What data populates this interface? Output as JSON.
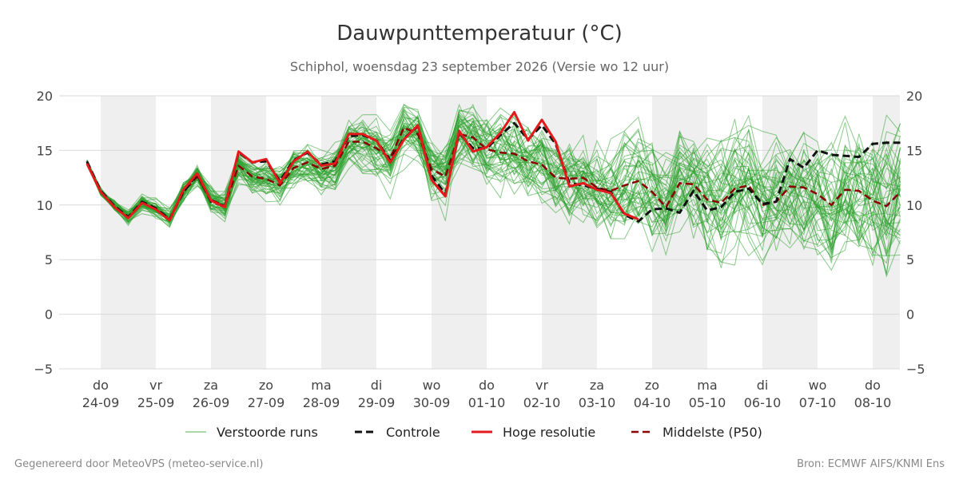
{
  "chart_data": {
    "type": "line",
    "title": "Dauwpunttemperatuur (°C)",
    "subtitle": "Schiphol, woensdag 23 september 2026 (Versie wo 12 uur)",
    "ylim": [
      -5,
      20
    ],
    "yticks": [
      "20",
      "15",
      "10",
      "5",
      "0",
      "−5"
    ],
    "ytick_values": [
      20,
      15,
      10,
      5,
      0,
      -5
    ],
    "xlim": [
      -0.25,
      14.5
    ],
    "grid": true,
    "legend": "bottom",
    "x_days": [
      {
        "day": "do",
        "date": "24-09",
        "x": 0
      },
      {
        "day": "vr",
        "date": "25-09",
        "x": 1
      },
      {
        "day": "za",
        "date": "26-09",
        "x": 2
      },
      {
        "day": "zo",
        "date": "27-09",
        "x": 3
      },
      {
        "day": "ma",
        "date": "28-09",
        "x": 4
      },
      {
        "day": "di",
        "date": "29-09",
        "x": 5
      },
      {
        "day": "wo",
        "date": "30-09",
        "x": 6
      },
      {
        "day": "do",
        "date": "01-10",
        "x": 7
      },
      {
        "day": "vr",
        "date": "02-10",
        "x": 8
      },
      {
        "day": "za",
        "date": "03-10",
        "x": 9
      },
      {
        "day": "zo",
        "date": "04-10",
        "x": 10
      },
      {
        "day": "ma",
        "date": "05-10",
        "x": 11
      },
      {
        "day": "di",
        "date": "06-10",
        "x": 12
      },
      {
        "day": "wo",
        "date": "07-10",
        "x": 13
      },
      {
        "day": "do",
        "date": "08-10",
        "x": 14
      }
    ],
    "shaded_days": [
      0,
      2,
      4,
      6,
      8,
      10,
      12,
      14
    ],
    "series": [
      {
        "name": "Hoge resolutie",
        "color": "#e31a1c",
        "x": [
          -0.25,
          0,
          0.25,
          0.5,
          0.75,
          1,
          1.25,
          1.5,
          1.75,
          2,
          2.25,
          2.5,
          2.75,
          3,
          3.25,
          3.5,
          3.75,
          4,
          4.25,
          4.5,
          4.75,
          5,
          5.25,
          5.5,
          5.75,
          6,
          6.25,
          6.5,
          6.75,
          7,
          7.25,
          7.5,
          7.75,
          8,
          8.25,
          8.5,
          8.75,
          9,
          9.25,
          9.5,
          9.75
        ],
        "y": [
          13.8,
          11.2,
          9.8,
          8.8,
          10.2,
          9.6,
          8.6,
          11.4,
          12.9,
          10.4,
          9.8,
          14.9,
          13.9,
          14.2,
          12.0,
          14.0,
          14.9,
          13.6,
          13.8,
          16.5,
          16.5,
          15.9,
          13.9,
          16.0,
          17.3,
          12.3,
          10.8,
          16.8,
          14.9,
          15.3,
          16.6,
          18.5,
          15.9,
          17.8,
          15.8,
          11.7,
          12.0,
          11.4,
          11.1,
          9.2,
          8.7
        ]
      },
      {
        "name": "Controle",
        "color": "#111111",
        "x": [
          -0.25,
          0,
          0.25,
          0.5,
          0.75,
          1,
          1.25,
          1.5,
          1.75,
          2,
          2.25,
          2.5,
          2.75,
          3,
          3.25,
          3.5,
          3.75,
          4,
          4.25,
          4.5,
          4.75,
          5,
          5.25,
          5.5,
          5.75,
          6,
          6.25,
          6.5,
          6.75,
          7,
          7.25,
          7.5,
          7.75,
          8,
          8.25,
          8.5,
          8.75,
          9,
          9.25,
          9.5,
          9.75,
          10,
          10.25,
          10.5,
          10.75,
          11,
          11.25,
          11.5,
          11.75,
          12,
          12.25,
          12.5,
          12.75,
          13,
          13.25,
          13.5,
          13.75,
          14,
          14.25,
          14.5
        ],
        "y": [
          14.0,
          11.3,
          9.9,
          8.9,
          10.3,
          9.7,
          8.7,
          11.2,
          12.8,
          10.3,
          9.9,
          14.8,
          13.9,
          14.0,
          12.2,
          14.1,
          14.8,
          13.7,
          14.0,
          16.3,
          16.4,
          15.9,
          14.1,
          16.1,
          17.2,
          12.7,
          11.0,
          16.6,
          15.2,
          15.2,
          16.4,
          17.5,
          16.0,
          17.3,
          15.6,
          12.0,
          11.8,
          11.5,
          11.2,
          9.1,
          8.5,
          9.6,
          9.7,
          9.3,
          11.3,
          9.5,
          9.8,
          11.2,
          11.5,
          10.1,
          10.3,
          14.2,
          13.4,
          15.0,
          14.6,
          14.5,
          14.4,
          15.6,
          15.7,
          15.7
        ]
      },
      {
        "name": "Middelste (P50)",
        "color": "#8b0000",
        "x": [
          -0.25,
          0,
          0.25,
          0.5,
          0.75,
          1,
          1.25,
          1.5,
          1.75,
          2,
          2.25,
          2.5,
          2.75,
          3,
          3.25,
          3.5,
          3.75,
          4,
          4.25,
          4.5,
          4.75,
          5,
          5.25,
          5.5,
          5.75,
          6,
          6.25,
          6.5,
          6.75,
          7,
          7.25,
          7.5,
          7.75,
          8,
          8.25,
          8.5,
          8.75,
          9,
          9.25,
          9.5,
          9.75,
          10,
          10.25,
          10.5,
          10.75,
          11,
          11.25,
          11.5,
          11.75,
          12,
          12.25,
          12.5,
          12.75,
          13,
          13.25,
          13.5,
          13.75,
          14,
          14.25,
          14.5
        ],
        "y": [
          13.9,
          11.2,
          9.9,
          8.9,
          10.2,
          9.6,
          8.7,
          11.2,
          12.6,
          10.5,
          9.9,
          13.6,
          12.6,
          12.4,
          11.8,
          13.4,
          13.9,
          13.3,
          13.6,
          15.8,
          15.8,
          15.2,
          14.3,
          17.1,
          16.5,
          13.3,
          12.6,
          16.5,
          16.2,
          15.1,
          14.8,
          14.7,
          14.0,
          13.7,
          12.5,
          12.4,
          12.5,
          11.6,
          11.3,
          11.8,
          12.2,
          11.2,
          9.8,
          12.0,
          11.9,
          10.5,
          10.2,
          11.5,
          11.8,
          10.0,
          10.3,
          11.7,
          11.6,
          11.0,
          10.0,
          11.4,
          11.3,
          10.4,
          9.9,
          11.2
        ]
      }
    ],
    "ensemble": {
      "name": "Verstoorde runs",
      "color": "#2ca02c",
      "count": 50
    }
  },
  "legend_items": [
    {
      "label": "Verstoorde runs"
    },
    {
      "label": "Controle"
    },
    {
      "label": "Hoge resolutie"
    },
    {
      "label": "Middelste (P50)"
    }
  ],
  "footer": {
    "left": "Gegenereerd door MeteoVPS (meteo-service.nl)",
    "right": "Bron: ECMWF AIFS/KNMI Ens"
  }
}
